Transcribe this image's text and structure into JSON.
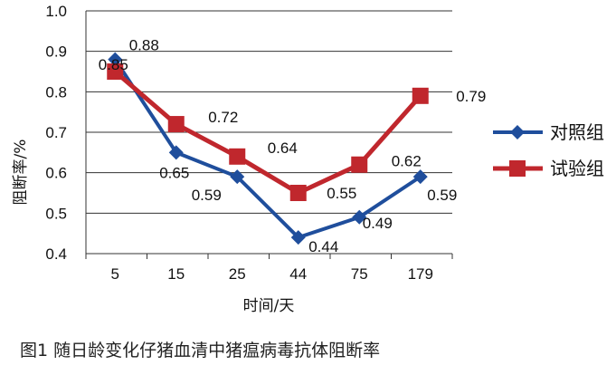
{
  "chart_data": {
    "type": "line",
    "categories": [
      "5",
      "15",
      "25",
      "44",
      "75",
      "179"
    ],
    "ylabel": "阻断率/%",
    "xlabel": "时间/天",
    "ylim": [
      0.4,
      1.0
    ],
    "yticks": [
      "0.4",
      "0.5",
      "0.6",
      "0.7",
      "0.8",
      "0.9",
      "1.0"
    ],
    "grid": "horizontal",
    "legend_position": "right",
    "series": [
      {
        "name": "对照组",
        "color": "#1f4e9c",
        "marker": "diamond",
        "values": [
          0.88,
          0.65,
          0.59,
          0.44,
          0.49,
          0.59
        ],
        "labels": [
          "0.88",
          "0.65",
          "0.59",
          "0.44",
          "0.49",
          "0.59"
        ]
      },
      {
        "name": "试验组",
        "color": "#c0272d",
        "marker": "square",
        "values": [
          0.85,
          0.72,
          0.64,
          0.55,
          0.62,
          0.79
        ],
        "labels": [
          "0.85",
          "0.72",
          "0.64",
          "0.55",
          "0.62",
          "0.79"
        ]
      }
    ]
  },
  "caption": "图1   随日龄变化仔猪血清中猪瘟病毒抗体阻断率"
}
